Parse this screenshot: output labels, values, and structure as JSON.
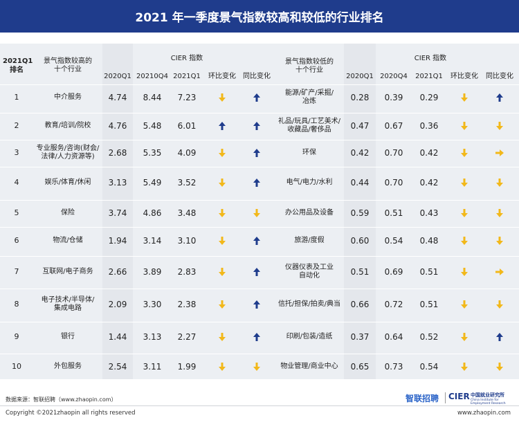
{
  "title": "2021 年一季度景气指数较高和较低的行业排名",
  "header": {
    "rank_top": "2021Q1",
    "rank_bottom": "排名",
    "high_ind_line1": "景气指数较高的",
    "high_ind_line2": "十个行业",
    "cier_index_left": "CIER 指数",
    "col_2020q1": "2020Q1",
    "col_2020q4_left": "20210Q4",
    "col_2021q1": "2021Q1",
    "qoq": "环比变化",
    "yoy": "同比变化",
    "low_ind_line1": "景气指数较低的",
    "low_ind_line2": "十个行业",
    "cier_index_right": "CIER 指数",
    "col_2020q4_right": "2020Q4"
  },
  "colors": {
    "title_bg": "#1f3c8c",
    "arrow_up": "#1f3c8c",
    "arrow_down": "#f2b81a",
    "arrow_flat": "#f2b81a"
  },
  "rows": [
    {
      "rank": "1",
      "high_line1": "中介服务",
      "high_line2": "",
      "h2020q1": "4.74",
      "h2020q4": "8.44",
      "h2021q1": "7.23",
      "h_qoq": "down",
      "h_yoy": "up",
      "low_line1": "能源/矿产/采掘/",
      "low_line2": "冶炼",
      "l2020q1": "0.28",
      "l2020q4": "0.39",
      "l2021q1": "0.29",
      "l_qoq": "down",
      "l_yoy": "up"
    },
    {
      "rank": "2",
      "high_line1": "教育/培训/院校",
      "high_line2": "",
      "h2020q1": "4.76",
      "h2020q4": "5.48",
      "h2021q1": "6.01",
      "h_qoq": "up",
      "h_yoy": "up",
      "low_line1": "礼品/玩具/工艺美术/",
      "low_line2": "收藏品/奢侈品",
      "l2020q1": "0.47",
      "l2020q4": "0.67",
      "l2021q1": "0.36",
      "l_qoq": "down",
      "l_yoy": "down"
    },
    {
      "rank": "3",
      "high_line1": "专业服务/咨询(财会/",
      "high_line2": "法律/人力资源等)",
      "h2020q1": "2.68",
      "h2020q4": "5.35",
      "h2021q1": "4.09",
      "h_qoq": "down",
      "h_yoy": "up",
      "low_line1": "环保",
      "low_line2": "",
      "l2020q1": "0.42",
      "l2020q4": "0.70",
      "l2021q1": "0.42",
      "l_qoq": "down",
      "l_yoy": "flat"
    },
    {
      "rank": "4",
      "high_line1": "娱乐/体育/休闲",
      "high_line2": "",
      "h2020q1": "3.13",
      "h2020q4": "5.49",
      "h2021q1": "3.52",
      "h_qoq": "down",
      "h_yoy": "up",
      "low_line1": "电气/电力/水利",
      "low_line2": "",
      "l2020q1": "0.44",
      "l2020q4": "0.70",
      "l2021q1": "0.42",
      "l_qoq": "down",
      "l_yoy": "down"
    },
    {
      "rank": "5",
      "high_line1": "保险",
      "high_line2": "",
      "h2020q1": "3.74",
      "h2020q4": "4.86",
      "h2021q1": "3.48",
      "h_qoq": "down",
      "h_yoy": "down",
      "low_line1": "办公用品及设备",
      "low_line2": "",
      "l2020q1": "0.59",
      "l2020q4": "0.51",
      "l2021q1": "0.43",
      "l_qoq": "down",
      "l_yoy": "down"
    },
    {
      "rank": "6",
      "high_line1": "物流/仓储",
      "high_line2": "",
      "h2020q1": "1.94",
      "h2020q4": "3.14",
      "h2021q1": "3.10",
      "h_qoq": "down",
      "h_yoy": "up",
      "low_line1": "旅游/度假",
      "low_line2": "",
      "l2020q1": "0.60",
      "l2020q4": "0.54",
      "l2021q1": "0.48",
      "l_qoq": "down",
      "l_yoy": "down"
    },
    {
      "rank": "7",
      "high_line1": "互联网/电子商务",
      "high_line2": "",
      "h2020q1": "2.66",
      "h2020q4": "3.89",
      "h2021q1": "2.83",
      "h_qoq": "down",
      "h_yoy": "up",
      "low_line1": "仪器仪表及工业",
      "low_line2": "自动化",
      "l2020q1": "0.51",
      "l2020q4": "0.69",
      "l2021q1": "0.51",
      "l_qoq": "down",
      "l_yoy": "flat"
    },
    {
      "rank": "8",
      "high_line1": "电子技术/半导体/",
      "high_line2": "集成电路",
      "h2020q1": "2.09",
      "h2020q4": "3.30",
      "h2021q1": "2.38",
      "h_qoq": "down",
      "h_yoy": "up",
      "low_line1": "信托/担保/拍卖/典当",
      "low_line2": "",
      "l2020q1": "0.66",
      "l2020q4": "0.72",
      "l2021q1": "0.51",
      "l_qoq": "down",
      "l_yoy": "down"
    },
    {
      "rank": "9",
      "high_line1": "银行",
      "high_line2": "",
      "h2020q1": "1.44",
      "h2020q4": "3.13",
      "h2021q1": "2.27",
      "h_qoq": "down",
      "h_yoy": "up",
      "low_line1": "印刷/包装/造纸",
      "low_line2": "",
      "l2020q1": "0.37",
      "l2020q4": "0.64",
      "l2021q1": "0.52",
      "l_qoq": "down",
      "l_yoy": "up"
    },
    {
      "rank": "10",
      "high_line1": "外包服务",
      "high_line2": "",
      "h2020q1": "2.54",
      "h2020q4": "3.11",
      "h2021q1": "1.99",
      "h_qoq": "down",
      "h_yoy": "down",
      "low_line1": "物业管理/商业中心",
      "low_line2": "",
      "l2020q1": "0.65",
      "l2020q4": "0.73",
      "l2021q1": "0.54",
      "l_qoq": "down",
      "l_yoy": "down"
    }
  ],
  "footer": {
    "source": "数据来源：智联招聘（www.zhaopin.com）",
    "copyright": "Copyright ©2021zhaopin all rights reserved",
    "url": "www.zhaopin.com",
    "logo_zhaopin": "智联招聘",
    "logo_cier": "CIER",
    "logo_cier_cn": "中国就业研究所",
    "logo_cier_en": "China Institute for Employment Research"
  }
}
